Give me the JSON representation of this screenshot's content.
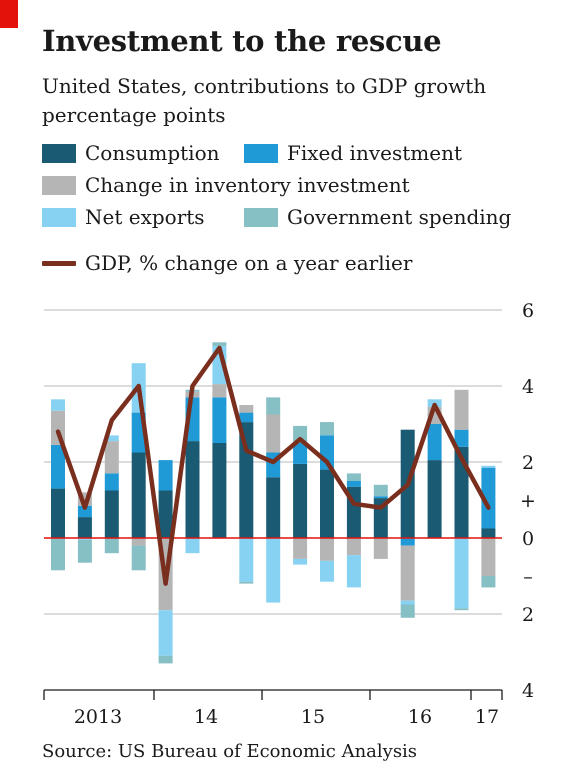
{
  "header": {
    "title": "Investment to the rescue",
    "subtitle_line1": "United States, contributions to GDP growth",
    "subtitle_line2": "percentage points"
  },
  "legend": {
    "consumption": "Consumption",
    "fixed_investment": "Fixed investment",
    "inventory": "Change in inventory investment",
    "net_exports": "Net exports",
    "government": "Government spending",
    "gdp": "GDP, % change on a year earlier"
  },
  "colors": {
    "consumption": "#1a5a72",
    "fixed_investment": "#1f9ad6",
    "inventory": "#b5b5b5",
    "net_exports": "#87d2f2",
    "government": "#86bfc4",
    "gdp": "#7a2e1e",
    "zero_line": "#e3120b",
    "grid": "#c8c8c8",
    "red_tab": "#e3120b"
  },
  "chart_data": {
    "type": "bar",
    "stacked": true,
    "x_axis": [
      "2013",
      "14",
      "15",
      "16",
      "17"
    ],
    "ylim": [
      -4,
      6
    ],
    "y_ticks": [
      "6",
      "4",
      "2",
      "+",
      "0",
      "–",
      "2",
      "4"
    ],
    "grid": true,
    "series": [
      {
        "name": "Consumption",
        "color_key": "consumption",
        "values": [
          1.3,
          0.55,
          1.25,
          2.25,
          1.25,
          2.55,
          2.5,
          3.05,
          1.6,
          1.95,
          1.8,
          1.35,
          1.05,
          2.85,
          2.05,
          2.4,
          0.25
        ]
      },
      {
        "name": "Fixed investment",
        "color_key": "fixed_investment",
        "values": [
          1.15,
          0.3,
          0.45,
          1.05,
          0.8,
          1.15,
          1.2,
          0.25,
          0.65,
          0.55,
          0.9,
          0.15,
          0.05,
          -0.2,
          0.95,
          0.45,
          1.6
        ]
      },
      {
        "name": "Change in inventory investment",
        "color_key": "inventory",
        "values": [
          0.9,
          0.35,
          0.85,
          -0.2,
          -1.9,
          0.15,
          0.35,
          0.2,
          1.0,
          -0.55,
          -0.6,
          -0.45,
          -0.55,
          -1.45,
          0.45,
          1.05,
          -1.0
        ]
      },
      {
        "name": "Net exports",
        "color_key": "net_exports",
        "values": [
          0.3,
          -0.05,
          0.15,
          1.3,
          -1.2,
          -0.4,
          1.0,
          -1.15,
          -1.7,
          -0.15,
          -0.55,
          -0.85,
          0.0,
          -0.1,
          0.2,
          -1.85,
          0.05
        ]
      },
      {
        "name": "Government spending",
        "color_key": "government",
        "values": [
          -0.85,
          -0.6,
          -0.4,
          -0.65,
          -0.2,
          0.05,
          0.1,
          -0.05,
          0.45,
          0.45,
          0.35,
          0.2,
          0.3,
          -0.35,
          0.0,
          -0.05,
          -0.3
        ]
      },
      {
        "name": "GDP, % change on a year earlier",
        "color_key": "gdp",
        "type": "line",
        "values": [
          2.8,
          0.8,
          3.1,
          4.0,
          -1.2,
          4.0,
          5.0,
          2.3,
          2.0,
          2.6,
          2.0,
          0.9,
          0.8,
          1.4,
          3.5,
          2.1,
          0.8
        ]
      }
    ]
  },
  "footer": {
    "source": "Source: US Bureau of Economic Analysis"
  }
}
